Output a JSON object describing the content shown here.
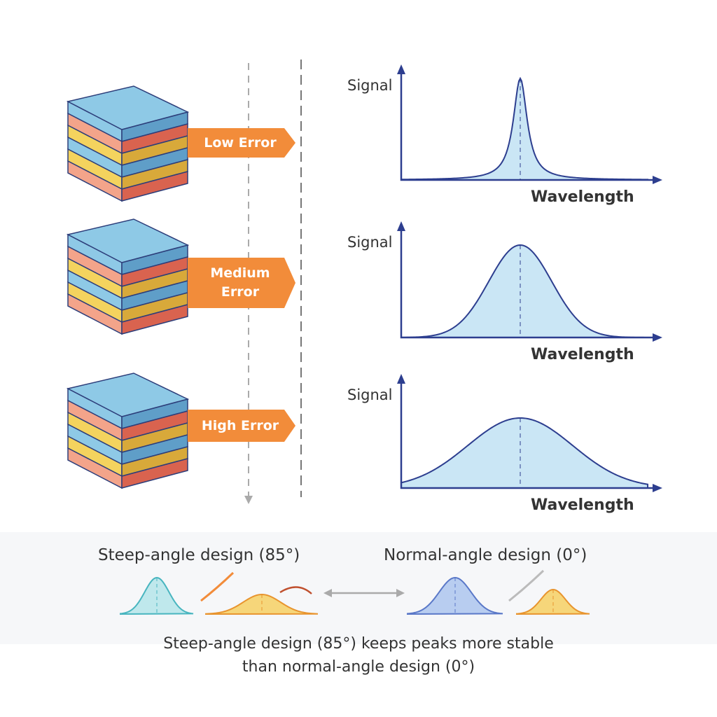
{
  "rows": [
    {
      "label": "Low Error",
      "y_label": "Signal",
      "x_label": "Wavelength"
    },
    {
      "label": "Medium Error",
      "y_label": "Signal",
      "x_label": "Wavelength"
    },
    {
      "label": "High Error",
      "y_label": "Signal",
      "x_label": "Wavelength"
    }
  ],
  "comparison": {
    "left": "Steep-angle design (85°)",
    "right": "Normal-angle design (0°)"
  },
  "caption": [
    "Steep-angle design (85°) keeps peaks more stable",
    "than normal-angle design (0°)"
  ]
}
